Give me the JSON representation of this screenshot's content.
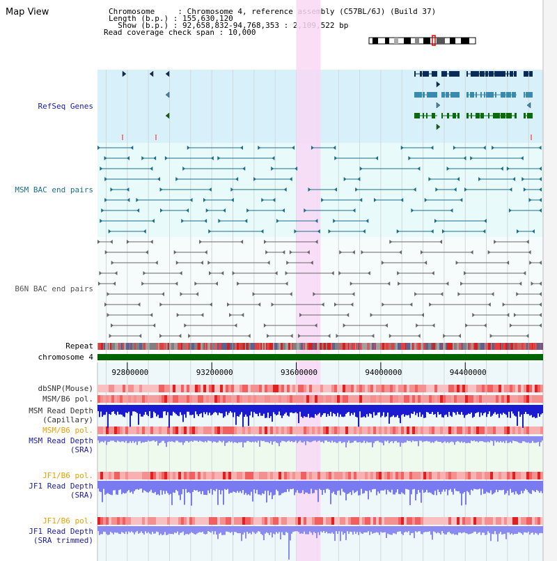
{
  "title": "Map View",
  "header": {
    "line1": "Chromosome     : Chromosome 4, reference assembly (C57BL/6J) (Build 37)",
    "line2": "Length (b.p.) : 155,630,120",
    "line3": "  Show (b.p.) : 92,658,832-94,768,353 : 2,109,522 bp",
    "line4": "Read coverage check span : 10,000"
  },
  "view": {
    "start": 92658832,
    "end": 94768353
  },
  "highlight": {
    "start": 93600000,
    "end": 93715000
  },
  "axis": {
    "ticks": [
      92800000,
      93200000,
      93600000,
      94000000,
      94400000
    ],
    "labels": [
      "92800000",
      "93200000",
      "93600000",
      "94000000",
      "94400000"
    ]
  },
  "tracks": {
    "refseq": "RefSeq Genes",
    "msm_bac": "MSM BAC end pairs",
    "b6n_bac": "B6N BAC end pairs",
    "repeat": "Repeat",
    "chromosome": "chromosome 4",
    "dbsnp": "dbSNP(Mouse)",
    "msm_pol": "MSM/B6 pol.",
    "msm_depth_cap_1": "MSM Read Depth",
    "msm_depth_cap_2": "(Capillary)",
    "msm_pol_2": "MSM/B6 pol.",
    "msm_depth_sra_1": "MSM Read Depth",
    "msm_depth_sra_2": "(SRA)",
    "jf1_pol": "JF1/B6 pol.",
    "jf1_depth_sra_1": "JF1 Read Depth",
    "jf1_depth_sra_2": "(SRA)",
    "jf1_pol_2": "JF1/B6 pol.",
    "jf1_depth_trim_1": "JF1 Read Depth",
    "jf1_depth_trim_2": "(SRA trimmed)"
  },
  "colors": {
    "refseq_bg": "#d8f0fa",
    "bac_bg": "#e8fafa",
    "highlight": "#f8d8f4",
    "refseq_label": "#1a1aa6",
    "msm_label": "#1a6e8a",
    "b6n_label": "#555555",
    "orange_label": "#e8a000",
    "blue_label": "#1a1aa6",
    "chromosome_bar": "#006400",
    "depth_dark": "#1a1ad0",
    "depth_light": "#8a8af0"
  }
}
